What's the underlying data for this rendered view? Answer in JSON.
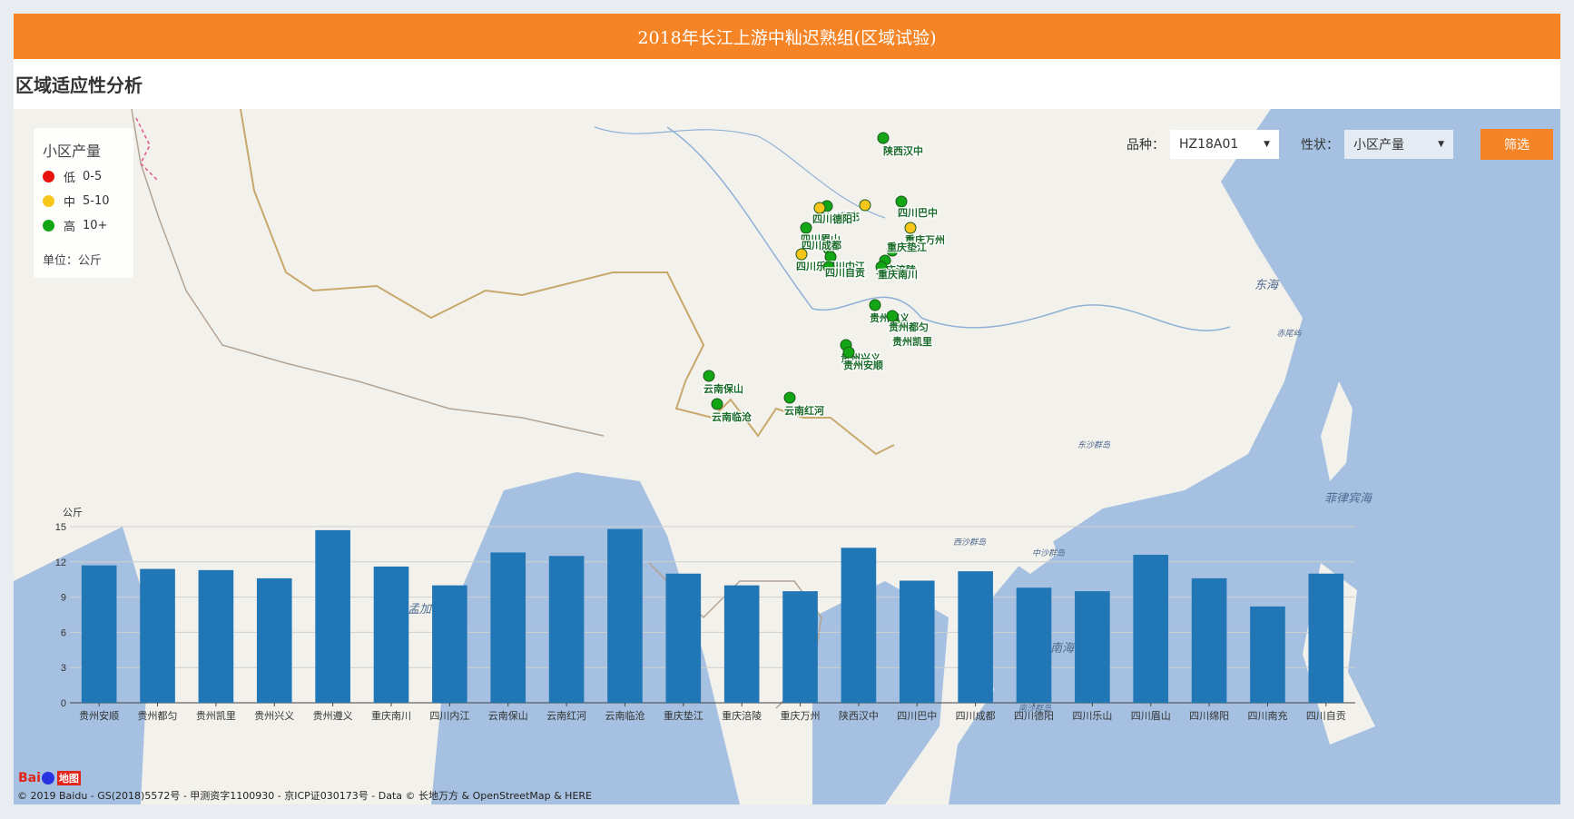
{
  "header": {
    "title": "2018年长江上游中籼迟熟组(区域试验)"
  },
  "section": {
    "title": "区域适应性分析"
  },
  "legend": {
    "title": "小区产量",
    "items": [
      {
        "level": "低",
        "range": "0-5",
        "color": "#e8130f"
      },
      {
        "level": "中",
        "range": "5-10",
        "color": "#f7c61b"
      },
      {
        "level": "高",
        "range": "10+",
        "color": "#12a614"
      }
    ],
    "unit_text": "单位：公斤"
  },
  "filter": {
    "variety_label": "品种：",
    "variety_value": "HZ18A01",
    "trait_label": "性状：",
    "trait_value": "小区产量",
    "submit_label": "筛选"
  },
  "map": {
    "sea_labels": [
      "东海",
      "菲律宾海",
      "南海",
      "孟加拉湾",
      "赤尾屿",
      "东沙群岛",
      "西沙群岛",
      "中沙群岛",
      "南沙群岛"
    ],
    "sites": [
      {
        "name": "陕西汉中",
        "level": "高"
      },
      {
        "name": "四川巴中",
        "level": "高"
      },
      {
        "name": "四川南充",
        "level": "中"
      },
      {
        "name": "四川绵阳",
        "level": "高"
      },
      {
        "name": "四川德阳",
        "level": "中"
      },
      {
        "name": "四川眉山",
        "level": "高"
      },
      {
        "name": "四川成都",
        "level": "高"
      },
      {
        "name": "四川乐山",
        "level": "中"
      },
      {
        "name": "四川内江",
        "level": "高"
      },
      {
        "name": "四川自贡",
        "level": "高"
      },
      {
        "name": "重庆万州",
        "level": "中"
      },
      {
        "name": "重庆垫江",
        "level": "高"
      },
      {
        "name": "重庆涪陵",
        "level": "高"
      },
      {
        "name": "重庆南川",
        "level": "高"
      },
      {
        "name": "贵州遵义",
        "level": "高"
      },
      {
        "name": "贵州都匀",
        "level": "高"
      },
      {
        "name": "贵州凯里",
        "level": "高"
      },
      {
        "name": "贵州兴义",
        "level": "高"
      },
      {
        "name": "贵州安顺",
        "level": "高"
      },
      {
        "name": "云南保山",
        "level": "高"
      },
      {
        "name": "云南临沧",
        "level": "高"
      },
      {
        "name": "云南红河",
        "level": "高"
      }
    ],
    "credit": "© 2019 Baidu - GS(2018)5572号 - 甲测资字1100930 - 京ICP证030173号 - Data © 长地万方 & OpenStreetMap & HERE",
    "logo_text": "Bai",
    "logo_map_word": "地图"
  },
  "chart_data": {
    "type": "bar",
    "ylabel": "公斤",
    "ylim": [
      0,
      15
    ],
    "yticks": [
      0,
      3,
      6,
      9,
      12,
      15
    ],
    "color": "#2176b6",
    "categories": [
      "贵州安顺",
      "贵州都匀",
      "贵州凯里",
      "贵州兴义",
      "贵州遵义",
      "重庆南川",
      "四川内江",
      "云南保山",
      "云南红河",
      "云南临沧",
      "重庆垫江",
      "重庆涪陵",
      "重庆万州",
      "陕西汉中",
      "四川巴中",
      "四川成都",
      "四川德阳",
      "四川乐山",
      "四川眉山",
      "四川绵阳",
      "四川南充",
      "四川自贡"
    ],
    "values": [
      11.7,
      11.4,
      11.3,
      10.6,
      14.7,
      11.6,
      10.0,
      12.8,
      12.5,
      14.8,
      11.0,
      10.0,
      9.5,
      13.2,
      10.4,
      11.2,
      9.8,
      9.5,
      12.6,
      10.6,
      8.2,
      11.0
    ]
  }
}
